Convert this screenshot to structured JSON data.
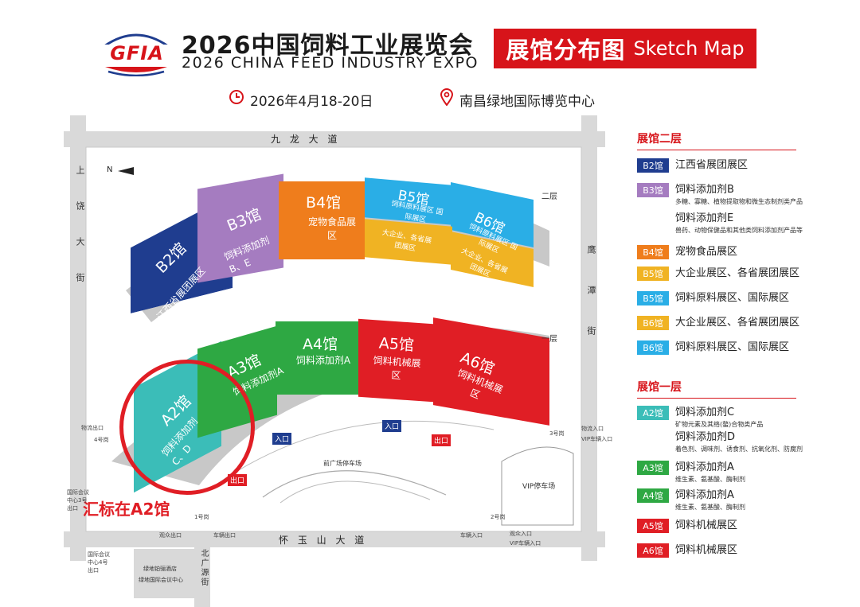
{
  "header": {
    "logo_text": "GFIA",
    "title_cn": "2026中国饲料工业展览会",
    "title_en": "2026 CHINA FEED INDUSTRY EXPO",
    "tag_cn": "展馆分布图",
    "tag_en": "Sketch Map",
    "date": "2026年4月18-20日",
    "venue": "南昌绿地国际博览中心"
  },
  "map": {
    "road_top": "九 龙 大 道",
    "road_bottom": "怀 玉 山 大 道",
    "road_left": "上饶大街",
    "road_right": "鹰潭街",
    "road_north": "北广源街",
    "north_label": "N",
    "floor_2": "二层",
    "floor_1": "一层",
    "front_plaza": "前广场停车场",
    "vip_parking": "VIP停车场",
    "hotel": "绿地铂骊酒店",
    "conference": "绿地国际会议中心",
    "annotation": "汇标在A2馆",
    "entrance": "入口",
    "exit": "出口",
    "gate_4": "4号岗",
    "gate_3": "3号岗",
    "gate_1": "1号岗",
    "gate_2": "2号岗",
    "logistics_exit": "物流出口",
    "logistics_entry": "物流入口",
    "vip_vehicle_entry": "VIP车辆入口",
    "audience_exit": "观众出口",
    "vehicle_exit": "车辆出口",
    "vehicle_entry": "车辆入口",
    "audience_entry": "观众入口",
    "vip_vehicle_entry_2": "VIP车辆入口",
    "bldg_exit_note": "国际会议中心3号出口",
    "hotel_entry_note": "国际会议中心4号出口",
    "upper_halls": [
      {
        "name": "B2馆",
        "sub": "江西省展团展区",
        "color": "#1f3d8f"
      },
      {
        "name": "B3馆",
        "sub": "饲料添加剂 B、E",
        "color": "#a57cc0"
      },
      {
        "name": "B4馆",
        "sub": "宠物食品展区",
        "color": "#ef7d1c"
      },
      {
        "name": "B5馆",
        "sub": "饲料原料展区 国际展区",
        "color": "#2aaee6"
      },
      {
        "name": "B6馆",
        "sub": "饲料原料展区 国际展区",
        "color": "#2aaee6"
      }
    ],
    "upper_inner": [
      {
        "sub": "大企业、各省展团展区",
        "color": "#f0b323"
      },
      {
        "sub": "大企业、各省展团展区",
        "color": "#f0b323"
      }
    ],
    "lower_halls": [
      {
        "name": "A2馆",
        "sub": "饲料添加剂 C、D",
        "color": "#3bbdb8"
      },
      {
        "name": "A3馆",
        "sub": "饲料添加剂A",
        "color": "#2ea843"
      },
      {
        "name": "A4馆",
        "sub": "饲料添加剂A",
        "color": "#2ea843"
      },
      {
        "name": "A5馆",
        "sub": "饲料机械展区",
        "color": "#e01e25"
      },
      {
        "name": "A6馆",
        "sub": "饲料机械展区",
        "color": "#e01e25"
      }
    ]
  },
  "legend": {
    "floor2_title": "展馆二层",
    "floor1_title": "展馆一层",
    "floor2": [
      {
        "tag": "B2馆",
        "color": "#1f3d8f",
        "main": "江西省展团展区",
        "sub": ""
      },
      {
        "tag": "B3馆",
        "color": "#a57cc0",
        "main": "饲料添加剂B",
        "sub": "多糖、寡糖、植物提取物和微生态制剂类产品"
      },
      {
        "tag": "",
        "color": "",
        "main": "饲料添加剂E",
        "sub": "兽药、动物保健品和其他类饲料添加剂产品等"
      },
      {
        "tag": "B4馆",
        "color": "#ef7d1c",
        "main": "宠物食品展区",
        "sub": ""
      },
      {
        "tag": "B5馆",
        "color": "#f0b323",
        "main": "大企业展区、各省展团展区",
        "sub": ""
      },
      {
        "tag": "B5馆",
        "color": "#2aaee6",
        "main": "饲料原料展区、国际展区",
        "sub": ""
      },
      {
        "tag": "B6馆",
        "color": "#f0b323",
        "main": "大企业展区、各省展团展区",
        "sub": ""
      },
      {
        "tag": "B6馆",
        "color": "#2aaee6",
        "main": "饲料原料展区、国际展区",
        "sub": ""
      }
    ],
    "floor1": [
      {
        "tag": "A2馆",
        "color": "#3bbdb8",
        "main": "饲料添加剂C",
        "sub": "矿物元素及其络(螯)合物类产品"
      },
      {
        "tag": "",
        "color": "",
        "main": "饲料添加剂D",
        "sub": "着色剂、调味剂、诱食剂、抗氧化剂、防腐剂"
      },
      {
        "tag": "A3馆",
        "color": "#2ea843",
        "main": "饲料添加剂A",
        "sub": "维生素、氨基酸、酶制剂"
      },
      {
        "tag": "A4馆",
        "color": "#2ea843",
        "main": "饲料添加剂A",
        "sub": "维生素、氨基酸、酶制剂"
      },
      {
        "tag": "A5馆",
        "color": "#e01e25",
        "main": "饲料机械展区",
        "sub": ""
      },
      {
        "tag": "A6馆",
        "color": "#e01e25",
        "main": "饲料机械展区",
        "sub": ""
      }
    ]
  }
}
